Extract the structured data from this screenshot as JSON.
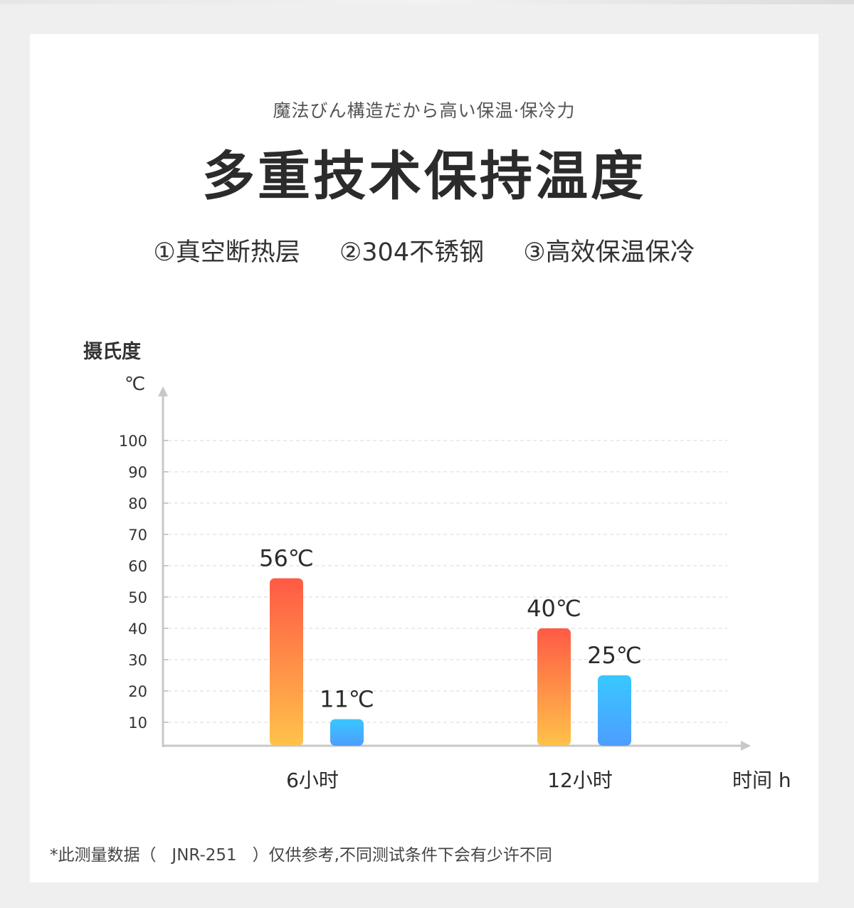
{
  "header": {
    "subtitle": "魔法びん構造だから高い保温·保冷力",
    "title": "多重技术保持温度",
    "features": [
      "①真空断热层",
      "②304不锈钢",
      "③高效保温保冷"
    ]
  },
  "footnote": "*此测量数据（   JNR-251   ）仅供参考,不同测试条件下会有少许不同",
  "colors": {
    "hot_top": "#ff5a45",
    "hot_bottom": "#ffc24a",
    "cold_top": "#38c8ff",
    "cold_bottom": "#4d9dff",
    "axis": "#c8c8c8",
    "grid": "#d9d9d9"
  },
  "chart_data": {
    "type": "bar",
    "ylabel": "摄氏度",
    "yunit": "℃",
    "xlabel": "时间 h",
    "categories": [
      "6小时",
      "12小时"
    ],
    "yticks": [
      10,
      20,
      30,
      40,
      50,
      60,
      70,
      80,
      90,
      100
    ],
    "ylim": [
      0,
      100
    ],
    "grid": true,
    "series": [
      {
        "values": [
          56,
          40
        ],
        "labels": [
          "56℃",
          "40℃"
        ],
        "color": "hot"
      },
      {
        "values": [
          11,
          25
        ],
        "labels": [
          "11℃",
          "25℃"
        ],
        "color": "cold"
      }
    ]
  }
}
